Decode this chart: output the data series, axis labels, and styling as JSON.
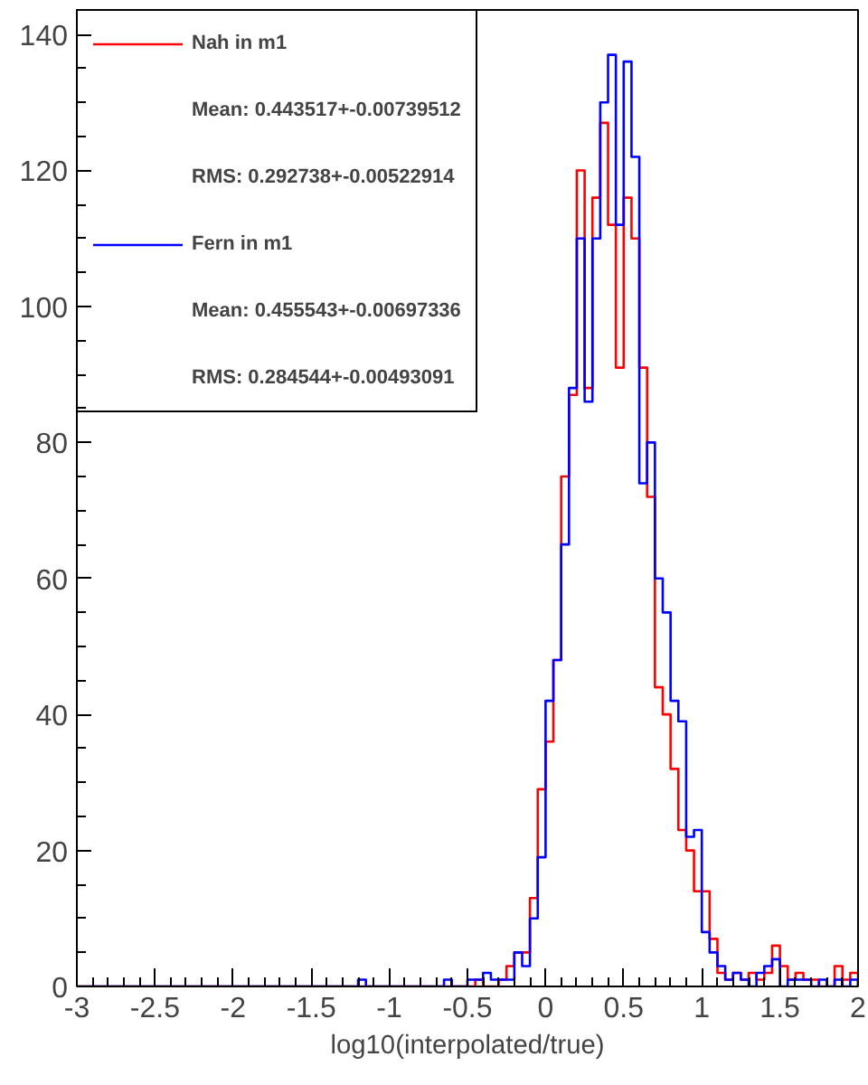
{
  "chart_data": {
    "type": "histogram",
    "xlabel": "log10(interpolated/true)",
    "bins": [
      -3,
      -2.95,
      -2.9,
      -2.85,
      -2.8,
      -2.75,
      -2.7,
      -2.65,
      -2.6,
      -2.55,
      -2.5,
      -2.45,
      -2.4,
      -2.35,
      -2.3,
      -2.25,
      -2.2,
      -2.15,
      -2.1,
      -2.05,
      -2,
      -1.95,
      -1.9,
      -1.85,
      -1.8,
      -1.75,
      -1.7,
      -1.65,
      -1.6,
      -1.55,
      -1.5,
      -1.45,
      -1.4,
      -1.35,
      -1.3,
      -1.25,
      -1.2,
      -1.15,
      -1.1,
      -1.05,
      -1,
      -0.95,
      -0.9,
      -0.85,
      -0.8,
      -0.75,
      -0.7,
      -0.65,
      -0.6,
      -0.55,
      -0.5,
      -0.45,
      -0.4,
      -0.35,
      -0.3,
      -0.25,
      -0.2,
      -0.15,
      -0.1,
      -0.05,
      0,
      0.05,
      0.1,
      0.15,
      0.2,
      0.25,
      0.3,
      0.35,
      0.4,
      0.45,
      0.5,
      0.55,
      0.6,
      0.65,
      0.7,
      0.75,
      0.8,
      0.85,
      0.9,
      0.95,
      1,
      1.05,
      1.1,
      1.15,
      1.2,
      1.25,
      1.3,
      1.35,
      1.4,
      1.45,
      1.5,
      1.55,
      1.6,
      1.65,
      1.7,
      1.75,
      1.8,
      1.85,
      1.9,
      1.95,
      2
    ],
    "series": [
      {
        "name": "Nah in m1",
        "color": "#ff0000",
        "values": [
          0,
          0,
          0,
          0,
          0,
          0,
          0,
          0,
          0,
          0,
          0,
          0,
          0,
          0,
          0,
          0,
          0,
          0,
          0,
          0,
          0,
          0,
          0,
          0,
          0,
          0,
          0,
          0,
          0,
          0,
          0,
          0,
          0,
          0,
          0,
          0,
          0,
          0,
          0,
          0,
          0,
          0,
          0,
          0,
          0,
          0,
          0,
          0,
          0,
          0,
          0,
          1,
          0,
          0,
          1,
          3,
          5,
          5,
          13,
          29,
          36,
          48,
          75,
          87,
          120,
          88,
          116,
          127,
          112,
          91,
          116,
          110,
          91,
          72,
          44,
          40,
          32,
          23,
          20,
          14,
          14,
          7,
          2,
          1,
          2,
          1,
          2,
          1,
          2,
          6,
          3,
          1,
          2,
          1,
          1,
          0,
          0,
          3,
          1,
          2
        ]
      },
      {
        "name": "Fern in m1",
        "color": "#0000ff",
        "values": [
          0,
          0,
          0,
          0,
          0,
          0,
          0,
          0,
          0,
          0,
          0,
          0,
          0,
          0,
          0,
          0,
          0,
          0,
          0,
          0,
          0,
          0,
          0,
          0,
          0,
          0,
          0,
          0,
          0,
          0,
          0,
          0,
          0,
          0,
          0,
          0,
          1,
          0,
          0,
          0,
          0,
          0,
          0,
          0,
          0,
          0,
          0,
          1,
          0,
          0,
          1,
          1,
          2,
          1,
          1,
          1,
          5,
          3,
          10,
          19,
          42,
          48,
          65,
          88,
          110,
          86,
          110,
          130,
          137,
          112,
          136,
          122,
          74,
          80,
          60,
          55,
          42,
          39,
          22,
          23,
          8,
          5,
          3,
          1,
          2,
          1,
          0,
          2,
          3,
          4,
          0,
          1,
          1,
          1,
          0,
          1,
          0,
          1,
          0,
          1
        ]
      }
    ],
    "annotations": [
      "Mean: 0.443517+-0.00739512",
      "RMS: 0.292738+-0.00522914",
      "Mean: 0.455543+-0.00697336",
      "RMS: 0.284544+-0.00493091"
    ],
    "xlim": [
      -3,
      2
    ],
    "ylim": [
      0,
      143.6
    ],
    "xticks": [
      -3,
      -2.5,
      -2,
      -1.5,
      -1,
      -0.5,
      0,
      0.5,
      1,
      1.5,
      2
    ],
    "yticks": [
      0,
      20,
      40,
      60,
      80,
      100,
      120,
      140
    ],
    "grid": false,
    "legend": "top left"
  }
}
